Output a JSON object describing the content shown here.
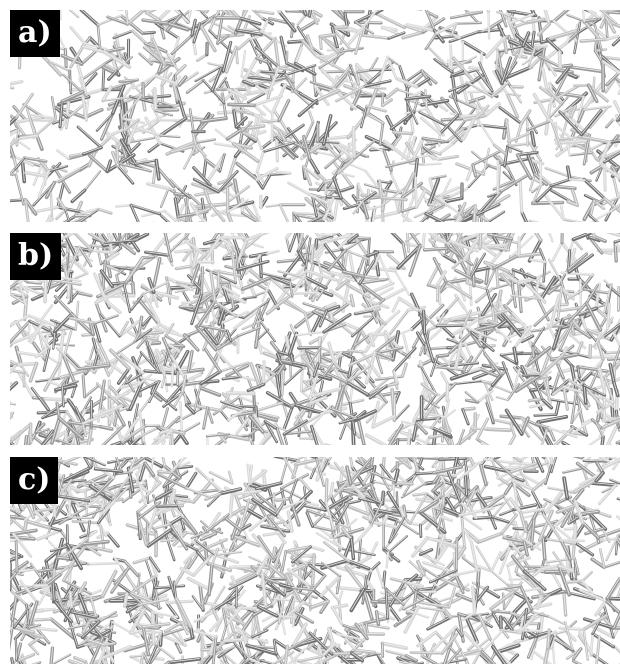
{
  "panels": [
    {
      "id": "a",
      "label": "a)",
      "seed": 11,
      "count": 1150,
      "description_colors": [
        "#bdbdbd",
        "#9a9a9a",
        "#6f6f6f",
        "#d6d6d6"
      ]
    },
    {
      "id": "b",
      "label": "b)",
      "seed": 27,
      "count": 1500,
      "description_colors": [
        "#bdbdbd",
        "#9a9a9a",
        "#6f6f6f",
        "#d6d6d6"
      ]
    },
    {
      "id": "c",
      "label": "c)",
      "seed": 53,
      "count": 1450,
      "description_colors": [
        "#bdbdbd",
        "#9a9a9a",
        "#6f6f6f",
        "#d6d6d6"
      ]
    }
  ]
}
